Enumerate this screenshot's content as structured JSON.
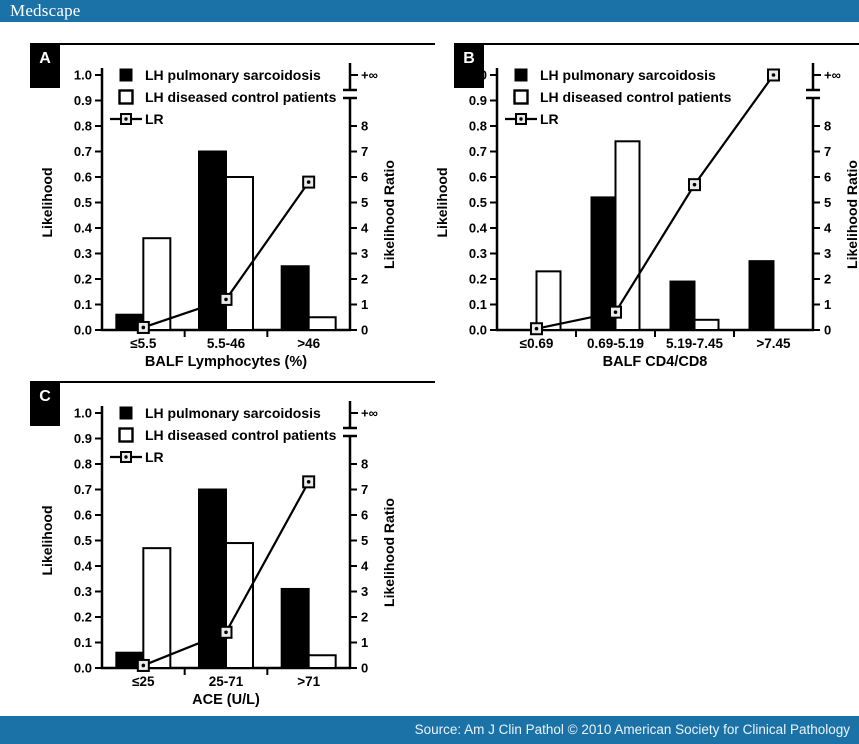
{
  "header": {
    "brand": "Medscape",
    "bar_color": "#1b72a7"
  },
  "footer": {
    "source_text": "Source: Am J Clin Pathol © 2010 American Society for Clinical Pathology",
    "bar_color": "#1b72a7"
  },
  "colors": {
    "bar_filled": "#000000",
    "bar_open": "#ffffff",
    "line": "#000000",
    "marker_fill": "#ebebeb"
  },
  "chart_data": [
    {
      "type": "bar",
      "panel_label": "A",
      "title": "",
      "categories": [
        "≤5.5",
        "5.5-46",
        ">46"
      ],
      "xlabel": "BALF Lymphocytes (%)",
      "ylabel": "Likelihood",
      "y2label": "Likelihood Ratio",
      "ylim": [
        0.0,
        1.0
      ],
      "ytick_step": 0.1,
      "y2lim": [
        0,
        8
      ],
      "y2tick_step": 1,
      "y2_infinity_label": "+∞",
      "grid": "off",
      "legend_position": "top-left",
      "legend": [
        {
          "marker": "filled-square",
          "label": "LH pulmonary sarcoidosis"
        },
        {
          "marker": "open-square",
          "label": "LH diseased control patients"
        },
        {
          "marker": "line-square-marker",
          "label": "LR"
        }
      ],
      "series": [
        {
          "name": "LH pulmonary sarcoidosis",
          "type": "bar",
          "style": "filled",
          "values": [
            0.06,
            0.7,
            0.25
          ]
        },
        {
          "name": "LH diseased control patients",
          "type": "bar",
          "style": "open",
          "values": [
            0.36,
            0.6,
            0.05
          ]
        },
        {
          "name": "LR",
          "type": "line",
          "axis": "right",
          "values": [
            0.1,
            1.2,
            5.8
          ]
        }
      ]
    },
    {
      "type": "bar",
      "panel_label": "B",
      "title": "",
      "categories": [
        "≤0.69",
        "0.69-5.19",
        "5.19-7.45",
        ">7.45"
      ],
      "xlabel": "BALF CD4/CD8",
      "ylabel": "Likelihood",
      "y2label": "Likelihood Ratio",
      "ylim": [
        0.0,
        1.0
      ],
      "ytick_step": 0.1,
      "y2lim": [
        0,
        8
      ],
      "y2tick_step": 1,
      "y2_infinity_label": "+∞",
      "grid": "off",
      "legend_position": "top-left",
      "legend": [
        {
          "marker": "filled-square",
          "label": "LH pulmonary sarcoidosis"
        },
        {
          "marker": "open-square",
          "label": "LH diseased control patients"
        },
        {
          "marker": "line-square-marker",
          "label": "LR"
        }
      ],
      "series": [
        {
          "name": "LH pulmonary sarcoidosis",
          "type": "bar",
          "style": "filled",
          "values": [
            0.0,
            0.52,
            0.19,
            0.27
          ]
        },
        {
          "name": "LH diseased control patients",
          "type": "bar",
          "style": "open",
          "values": [
            0.23,
            0.74,
            0.04,
            0.0
          ]
        },
        {
          "name": "LR",
          "type": "line",
          "axis": "right",
          "values": [
            0.05,
            0.7,
            5.7,
            "+∞"
          ]
        }
      ]
    },
    {
      "type": "bar",
      "panel_label": "C",
      "title": "",
      "categories": [
        "≤25",
        "25-71",
        ">71"
      ],
      "xlabel": "ACE (U/L)",
      "ylabel": "Likelihood",
      "y2label": "Likelihood Ratio",
      "ylim": [
        0.0,
        1.0
      ],
      "ytick_step": 0.1,
      "y2lim": [
        0,
        8
      ],
      "y2tick_step": 1,
      "y2_infinity_label": "+∞",
      "grid": "off",
      "legend_position": "top-left",
      "legend": [
        {
          "marker": "filled-square",
          "label": "LH pulmonary sarcoidosis"
        },
        {
          "marker": "open-square",
          "label": "LH diseased control patients"
        },
        {
          "marker": "line-square-marker",
          "label": "LR"
        }
      ],
      "series": [
        {
          "name": "LH pulmonary sarcoidosis",
          "type": "bar",
          "style": "filled",
          "values": [
            0.06,
            0.7,
            0.31
          ]
        },
        {
          "name": "LH diseased control patients",
          "type": "bar",
          "style": "open",
          "values": [
            0.47,
            0.49,
            0.05
          ]
        },
        {
          "name": "LR",
          "type": "line",
          "axis": "right",
          "values": [
            0.1,
            1.4,
            7.3
          ]
        }
      ]
    }
  ]
}
